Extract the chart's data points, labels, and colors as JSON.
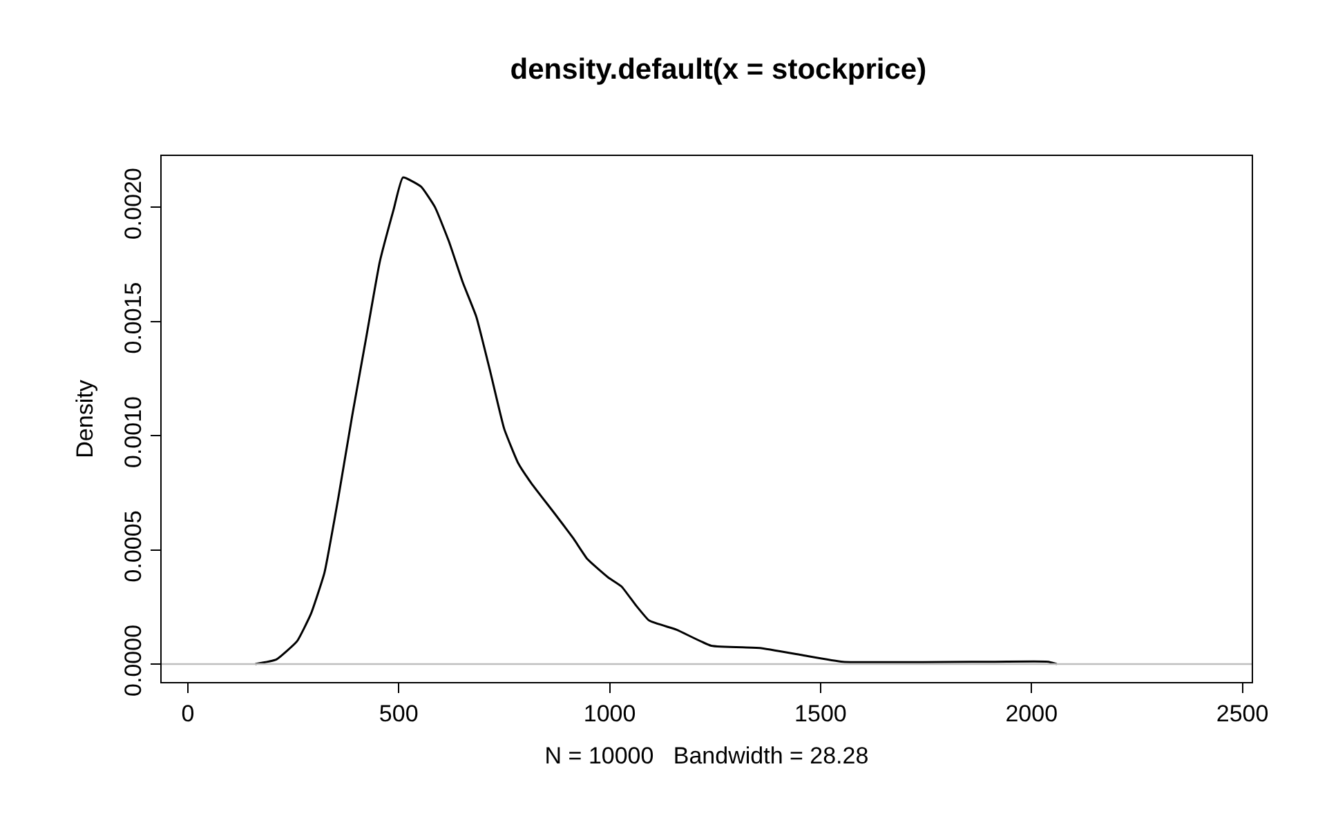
{
  "chart_data": {
    "type": "line",
    "title": "density.default(x = stockprice)",
    "xlabel": "N = 10000   Bandwidth = 28.28",
    "ylabel": "Density",
    "series": [
      {
        "color": "#000000",
        "x": [
          160,
          210,
          259,
          292,
          324,
          357,
          390,
          423,
          455,
          488,
          510,
          553,
          586,
          619,
          652,
          684,
          717,
          750,
          783,
          815,
          865,
          914,
          947,
          996,
          1028,
          1061,
          1094,
          1159,
          1241,
          1356,
          1454,
          1553,
          1913,
          2040,
          2060
        ],
        "values": [
          0,
          2e-05,
          0.0001,
          0.00022,
          0.0004,
          0.00073,
          0.00109,
          0.00143,
          0.00176,
          0.00199,
          0.00213,
          0.00209,
          0.002,
          0.00185,
          0.00167,
          0.00152,
          0.00128,
          0.00103,
          0.00088,
          0.00079,
          0.00067,
          0.00055,
          0.00046,
          0.00038,
          0.00034,
          0.00026,
          0.00019,
          0.00015,
          8e-05,
          7e-05,
          4e-05,
          1e-05,
          1e-05,
          1e-05,
          0
        ]
      }
    ],
    "xlim": [
      -62,
      2522
    ],
    "ylim": [
      -7.86e-05,
      0.002224
    ],
    "xticks": [
      0,
      500,
      1000,
      1500,
      2000,
      2500
    ],
    "yticks": [
      {
        "value": 0,
        "label": "0.0000"
      },
      {
        "value": 0.0005,
        "label": "0.0005"
      },
      {
        "value": 0.001,
        "label": "0.0010"
      },
      {
        "value": 0.0015,
        "label": "0.0015"
      },
      {
        "value": 0.002,
        "label": "0.0020"
      }
    ],
    "ref_lines": [
      {
        "axis": "y",
        "value": 0,
        "color": "#bebebe"
      }
    ],
    "legend": false,
    "marker": "none",
    "line_style": "solid"
  }
}
